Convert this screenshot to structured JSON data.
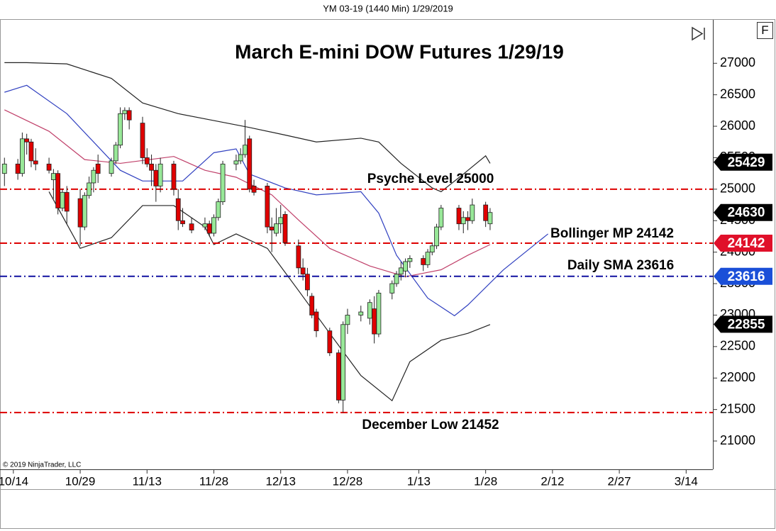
{
  "header": "YM 03-19 (1440 Min)  1/29/2019",
  "copyright": "© 2019 NinjaTrader, LLC",
  "button": "F",
  "chart_data": {
    "type": "candlestick",
    "title": "March E-mini DOW Futures 1/29/19",
    "x": [
      "10/12",
      "10/15",
      "10/16",
      "10/17",
      "10/18",
      "10/19",
      "10/22",
      "10/23",
      "10/24",
      "10/25",
      "10/26",
      "10/29",
      "10/30",
      "10/31",
      "11/1",
      "11/2",
      "11/5",
      "11/6",
      "11/7",
      "11/8",
      "11/9",
      "11/12",
      "11/13",
      "11/14",
      "11/15",
      "11/16",
      "11/19",
      "11/20",
      "11/21",
      "11/23",
      "11/26",
      "11/27",
      "11/28",
      "11/29",
      "11/30",
      "12/3",
      "12/4",
      "12/5",
      "12/6",
      "12/7",
      "12/10",
      "12/11",
      "12/12",
      "12/13",
      "12/14",
      "12/17",
      "12/18",
      "12/19",
      "12/20",
      "12/21",
      "12/24",
      "12/26",
      "12/27",
      "12/28",
      "12/31",
      "1/2",
      "1/3",
      "1/4",
      "1/7",
      "1/8",
      "1/9",
      "1/10",
      "1/11",
      "1/14",
      "1/15",
      "1/16",
      "1/17",
      "1/18",
      "1/22",
      "1/23",
      "1/24",
      "1/25",
      "1/28",
      "1/29"
    ],
    "open": [
      25250,
      25400,
      25250,
      25800,
      25750,
      25450,
      25400,
      25150,
      25250,
      24700,
      24950,
      24850,
      24400,
      24900,
      25100,
      25400,
      25250,
      25450,
      25700,
      26200,
      26250,
      26050,
      25500,
      25400,
      25300,
      25050,
      25400,
      24850,
      24500,
      24450,
      24400,
      24450,
      24300,
      24550,
      24800,
      25400,
      25450,
      25550,
      25800,
      25050,
      25050,
      24400,
      24300,
      24450,
      24600,
      24100,
      23750,
      23650,
      23300,
      23050,
      22750,
      22400,
      21650,
      22850,
      23000,
      22950,
      23100,
      22700,
      23350,
      23500,
      23650,
      23700,
      23850,
      23900,
      23800,
      24000,
      24100,
      24400,
      24700,
      24450,
      24550,
      24500,
      24750,
      24450
    ],
    "high": [
      25500,
      25480,
      25900,
      25880,
      25800,
      25650,
      25500,
      25320,
      25300,
      25000,
      25050,
      25000,
      24950,
      25200,
      25350,
      25550,
      25500,
      25750,
      26300,
      26300,
      26300,
      26150,
      25650,
      25550,
      25400,
      25500,
      25450,
      25000,
      24700,
      24550,
      24550,
      24500,
      24600,
      24850,
      25450,
      25550,
      25650,
      26100,
      25850,
      25150,
      25100,
      24550,
      24700,
      24750,
      24650,
      24200,
      23900,
      23750,
      23350,
      23100,
      22800,
      22450,
      22900,
      23100,
      23150,
      23250,
      23300,
      23400,
      23550,
      23700,
      23850,
      23900,
      23950,
      23950,
      24050,
      24150,
      24450,
      24750,
      24750,
      24650,
      24650,
      24850,
      24800,
      24700
    ],
    "low": [
      25050,
      25150,
      25200,
      25550,
      25350,
      25300,
      25250,
      24850,
      24600,
      24650,
      24450,
      24100,
      24350,
      24850,
      24950,
      25100,
      25200,
      25400,
      25650,
      26100,
      25950,
      25400,
      25350,
      25050,
      24800,
      24950,
      24900,
      24350,
      24400,
      24300,
      24350,
      24250,
      24250,
      24500,
      24750,
      25300,
      25400,
      25500,
      24950,
      24900,
      24300,
      24000,
      24250,
      24300,
      24100,
      23650,
      23550,
      23300,
      22950,
      22650,
      22350,
      21600,
      21452,
      22700,
      22900,
      22850,
      22550,
      22650,
      23250,
      23450,
      23550,
      23600,
      23750,
      23700,
      23750,
      23950,
      24050,
      24350,
      24350,
      24300,
      24350,
      24450,
      24400,
      24350
    ],
    "close": [
      25400,
      25250,
      25800,
      25750,
      25450,
      25400,
      25300,
      25250,
      24700,
      24950,
      24650,
      24400,
      24900,
      25100,
      25300,
      25250,
      25450,
      25700,
      26200,
      26250,
      26100,
      25500,
      25400,
      25300,
      25050,
      25400,
      25000,
      24500,
      24450,
      24350,
      24450,
      24300,
      24550,
      24800,
      25400,
      25450,
      25550,
      25700,
      25000,
      24950,
      24400,
      24350,
      24450,
      24550,
      24150,
      23750,
      23650,
      23400,
      23000,
      22750,
      22400,
      21650,
      22850,
      23000,
      23050,
      23200,
      22700,
      23350,
      23500,
      23650,
      23750,
      23850,
      23900,
      23800,
      24000,
      24100,
      24400,
      24700,
      24450,
      24550,
      24500,
      24750,
      24500,
      24630
    ],
    "up_color": "#98e898",
    "down_color": "#e00000",
    "xlim": [
      "10/11",
      "3/20"
    ],
    "xticks": [
      "10/14",
      "10/29",
      "11/13",
      "11/28",
      "12/13",
      "12/28",
      "1/13",
      "1/28",
      "2/12",
      "2/27",
      "3/14"
    ],
    "ylim": [
      20550,
      27690
    ],
    "yticks": [
      21000,
      21500,
      22000,
      22500,
      23000,
      23500,
      24000,
      24500,
      25000,
      25500,
      26000,
      26500,
      27000
    ],
    "lines": [
      {
        "color": "#222222",
        "x": [
          "10/12",
          "10/17",
          "10/26",
          "11/5",
          "11/12",
          "11/20",
          "11/28",
          "12/6",
          "12/14",
          "12/21",
          "12/31",
          "1/4",
          "1/9",
          "1/16",
          "1/18",
          "1/23",
          "1/28",
          "1/29"
        ],
        "values": [
          27010,
          27010,
          26990,
          26760,
          26370,
          26200,
          26090,
          25980,
          25860,
          25750,
          25810,
          25750,
          25410,
          25020,
          24960,
          25240,
          25530,
          25410
        ]
      },
      {
        "color": "#222222",
        "x": [
          "10/22",
          "10/29",
          "11/5",
          "11/12",
          "11/19",
          "11/26",
          "11/28",
          "12/3",
          "12/10",
          "12/17",
          "12/24",
          "12/31",
          "1/7",
          "1/11",
          "1/18",
          "1/24",
          "1/29"
        ],
        "values": [
          24960,
          24060,
          24230,
          24740,
          24740,
          24400,
          24120,
          24290,
          24060,
          23390,
          22710,
          22040,
          21640,
          22260,
          22600,
          22710,
          22850
        ]
      },
      {
        "color": "#c0406a",
        "x": [
          "10/12",
          "10/22",
          "10/30",
          "11/7",
          "11/19",
          "11/26",
          "12/3",
          "12/11",
          "12/17",
          "12/24",
          "1/2",
          "1/10",
          "1/18",
          "1/24",
          "1/29"
        ],
        "values": [
          26260,
          25920,
          25470,
          25410,
          25520,
          25300,
          25190,
          24910,
          24510,
          24060,
          23780,
          23610,
          23720,
          23950,
          24120
        ]
      },
      {
        "color": "#3040c0",
        "x": [
          "10/12",
          "10/17",
          "10/26",
          "11/7",
          "11/12",
          "11/21",
          "11/28",
          "12/3",
          "12/6",
          "12/14",
          "12/21",
          "12/31",
          "1/4",
          "1/8",
          "1/15",
          "1/21",
          "1/24",
          "2/1",
          "2/11"
        ],
        "values": [
          26540,
          26650,
          26200,
          25300,
          25130,
          25130,
          25580,
          25640,
          25240,
          25020,
          24910,
          24960,
          24620,
          23950,
          23270,
          22990,
          23160,
          23720,
          24290
        ]
      }
    ],
    "levels": [
      {
        "value": 25000,
        "color": "#dd0000",
        "label": "Psyche Level 25000"
      },
      {
        "value": 24142,
        "color": "#dd0000",
        "label": "Bollinger MP 24142"
      },
      {
        "value": 23616,
        "color": "#1010a0",
        "label": "Daily SMA 23616"
      },
      {
        "value": 21452,
        "color": "#dd0000",
        "label": "December Low 21452"
      }
    ],
    "price_markers": [
      {
        "value": 25429,
        "color": "#000000"
      },
      {
        "value": 24630,
        "color": "#000000"
      },
      {
        "value": 24142,
        "color": "#e0102a"
      },
      {
        "value": 23616,
        "color": "#1a4fd8"
      },
      {
        "value": 22855,
        "color": "#000000"
      }
    ]
  }
}
